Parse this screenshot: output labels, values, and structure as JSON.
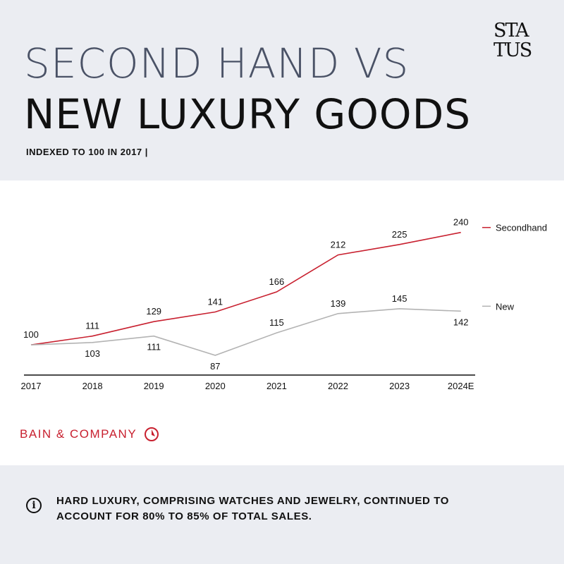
{
  "header": {
    "title_line1": "SECOND HAND VS",
    "title_line2": "NEW LUXURY GOODS",
    "subtitle": "INDEXED TO 100 IN 2017  |",
    "logo_line1": "STA",
    "logo_line2": "TUS"
  },
  "chart_data": {
    "type": "line",
    "categories": [
      "2017",
      "2018",
      "2019",
      "2020",
      "2021",
      "2022",
      "2023",
      "2024E"
    ],
    "series": [
      {
        "name": "Secondhand",
        "values": [
          100,
          111,
          129,
          141,
          166,
          212,
          225,
          240
        ],
        "color": "#c8202f"
      },
      {
        "name": "New",
        "values": [
          100,
          103,
          111,
          87,
          115,
          139,
          145,
          142
        ],
        "color": "#b3b3b3"
      }
    ],
    "title": "",
    "xlabel": "",
    "ylabel": "",
    "ylim": [
      80,
      245
    ],
    "legend": "right",
    "grid": false
  },
  "source": {
    "label": "BAIN & COMPANY",
    "icon": "bain-logo-icon",
    "color": "#c8202f"
  },
  "footer": {
    "icon": "info-icon",
    "icon_glyph": "i",
    "note": "HARD LUXURY, COMPRISING WATCHES AND JEWELRY, CONTINUED TO ACCOUNT FOR 80% TO 85% OF TOTAL SALES."
  }
}
